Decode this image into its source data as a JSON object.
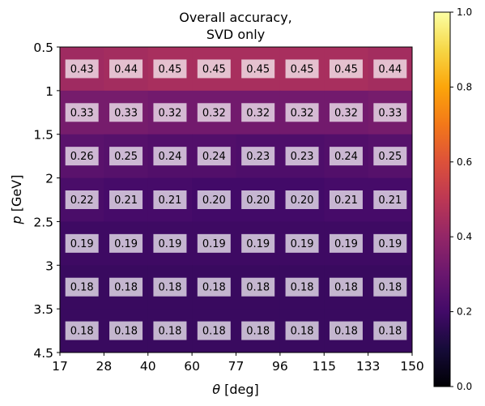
{
  "chart_data": {
    "type": "heatmap",
    "title_lines": [
      "Overall accuracy,",
      "SVD only"
    ],
    "xlabel_symbol": "θ",
    "xlabel_unit": " [deg]",
    "ylabel_symbol": "p",
    "ylabel_unit": " [GeV]",
    "x_tick_labels": [
      "17",
      "28",
      "40",
      "60",
      "77",
      "96",
      "115",
      "133",
      "150"
    ],
    "y_tick_labels": [
      "0.5",
      "1",
      "1.5",
      "2",
      "2.5",
      "3",
      "3.5",
      "4.5"
    ],
    "colorbar": {
      "colormap": "inferno",
      "range": [
        0.0,
        1.0
      ],
      "tick_labels": [
        "0.0",
        "0.2",
        "0.4",
        "0.6",
        "0.8",
        "1.0"
      ]
    },
    "values": [
      [
        0.43,
        0.44,
        0.45,
        0.45,
        0.45,
        0.45,
        0.45,
        0.44
      ],
      [
        0.33,
        0.33,
        0.32,
        0.32,
        0.32,
        0.32,
        0.32,
        0.33
      ],
      [
        0.26,
        0.25,
        0.24,
        0.24,
        0.23,
        0.23,
        0.24,
        0.25
      ],
      [
        0.22,
        0.21,
        0.21,
        0.2,
        0.2,
        0.2,
        0.21,
        0.21
      ],
      [
        0.19,
        0.19,
        0.19,
        0.19,
        0.19,
        0.19,
        0.19,
        0.19
      ],
      [
        0.18,
        0.18,
        0.18,
        0.18,
        0.18,
        0.18,
        0.18,
        0.18
      ],
      [
        0.18,
        0.18,
        0.18,
        0.18,
        0.18,
        0.18,
        0.18,
        0.18
      ]
    ]
  }
}
